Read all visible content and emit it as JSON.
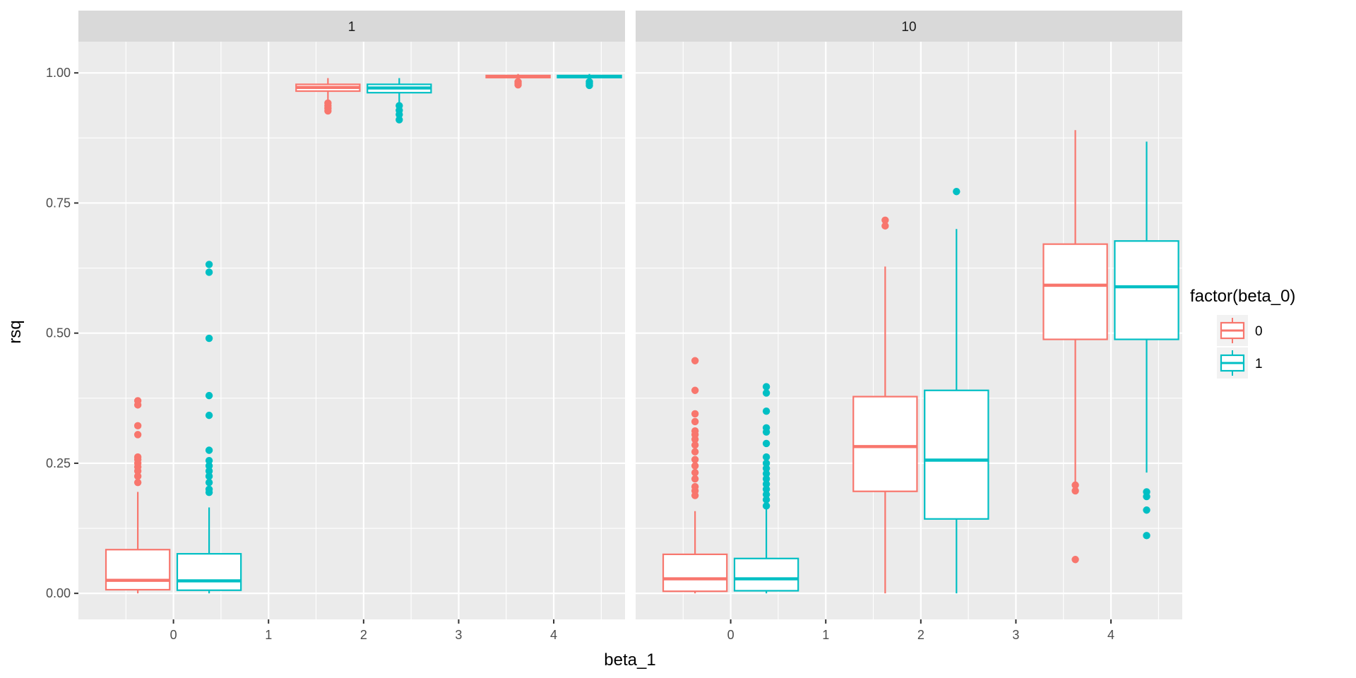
{
  "chart_data": {
    "type": "boxplot",
    "facet_variable": "beta_2",
    "facets": [
      "1",
      "10"
    ],
    "xlabel": "beta_1",
    "ylabel": "rsq",
    "x_ticks": [
      "0",
      "1",
      "2",
      "3",
      "4"
    ],
    "x_range": [
      -1,
      4.75
    ],
    "ylim": [
      -0.05,
      1.06
    ],
    "y_ticks": [
      0.0,
      0.25,
      0.5,
      0.75,
      1.0
    ],
    "y_tick_labels": [
      "0.00",
      "0.25",
      "0.50",
      "0.75",
      "1.00"
    ],
    "legend": {
      "title": "factor(beta_0)",
      "entries": [
        {
          "label": "0",
          "color": "#F8766D"
        },
        {
          "label": "1",
          "color": "#00BFC4"
        }
      ]
    },
    "boxes": [
      {
        "facet": "1",
        "beta_1": 0,
        "group": "0",
        "lower_whisker": 0.0,
        "q1": 0.007,
        "median": 0.025,
        "q3": 0.084,
        "upper_whisker": 0.195,
        "outliers": [
          0.37,
          0.362,
          0.322,
          0.305,
          0.262,
          0.257,
          0.25,
          0.243,
          0.235,
          0.225,
          0.213
        ]
      },
      {
        "facet": "1",
        "beta_1": 0,
        "group": "1",
        "lower_whisker": 0.0,
        "q1": 0.006,
        "median": 0.024,
        "q3": 0.076,
        "upper_whisker": 0.165,
        "outliers": [
          0.632,
          0.617,
          0.49,
          0.38,
          0.342,
          0.275,
          0.255,
          0.245,
          0.235,
          0.225,
          0.213,
          0.2,
          0.194
        ]
      },
      {
        "facet": "1",
        "beta_1": 2,
        "group": "0",
        "lower_whisker": 0.945,
        "q1": 0.965,
        "median": 0.972,
        "q3": 0.978,
        "upper_whisker": 0.99,
        "outliers": [
          0.942,
          0.937,
          0.932,
          0.927
        ]
      },
      {
        "facet": "1",
        "beta_1": 2,
        "group": "1",
        "lower_whisker": 0.942,
        "q1": 0.962,
        "median": 0.971,
        "q3": 0.978,
        "upper_whisker": 0.99,
        "outliers": [
          0.937,
          0.928,
          0.92,
          0.91
        ]
      },
      {
        "facet": "1",
        "beta_1": 4,
        "group": "0",
        "lower_whisker": 0.986,
        "q1": 0.991,
        "median": 0.993,
        "q3": 0.995,
        "upper_whisker": 0.998,
        "outliers": [
          0.983,
          0.98,
          0.977
        ]
      },
      {
        "facet": "1",
        "beta_1": 4,
        "group": "1",
        "lower_whisker": 0.986,
        "q1": 0.991,
        "median": 0.993,
        "q3": 0.995,
        "upper_whisker": 0.998,
        "outliers": [
          0.983,
          0.98,
          0.976
        ]
      },
      {
        "facet": "10",
        "beta_1": 0,
        "group": "0",
        "lower_whisker": 0.0,
        "q1": 0.004,
        "median": 0.028,
        "q3": 0.075,
        "upper_whisker": 0.158,
        "outliers": [
          0.447,
          0.39,
          0.345,
          0.33,
          0.312,
          0.305,
          0.296,
          0.285,
          0.272,
          0.257,
          0.245,
          0.232,
          0.22,
          0.205,
          0.197,
          0.188
        ]
      },
      {
        "facet": "10",
        "beta_1": 0,
        "group": "1",
        "lower_whisker": 0.0,
        "q1": 0.005,
        "median": 0.028,
        "q3": 0.067,
        "upper_whisker": 0.162,
        "outliers": [
          0.397,
          0.385,
          0.35,
          0.318,
          0.31,
          0.288,
          0.262,
          0.25,
          0.24,
          0.23,
          0.22,
          0.21,
          0.2,
          0.19,
          0.18,
          0.168
        ]
      },
      {
        "facet": "10",
        "beta_1": 2,
        "group": "0",
        "lower_whisker": 0.0,
        "q1": 0.196,
        "median": 0.282,
        "q3": 0.378,
        "upper_whisker": 0.628,
        "outliers": [
          0.717,
          0.706
        ]
      },
      {
        "facet": "10",
        "beta_1": 2,
        "group": "1",
        "lower_whisker": 0.0,
        "q1": 0.143,
        "median": 0.256,
        "q3": 0.39,
        "upper_whisker": 0.7,
        "outliers": [
          0.772
        ]
      },
      {
        "facet": "10",
        "beta_1": 4,
        "group": "0",
        "lower_whisker": 0.21,
        "q1": 0.488,
        "median": 0.592,
        "q3": 0.671,
        "upper_whisker": 0.89,
        "outliers": [
          0.208,
          0.197,
          0.065
        ]
      },
      {
        "facet": "10",
        "beta_1": 4,
        "group": "1",
        "lower_whisker": 0.232,
        "q1": 0.488,
        "median": 0.589,
        "q3": 0.677,
        "upper_whisker": 0.868,
        "outliers": [
          0.195,
          0.186,
          0.16,
          0.111
        ]
      }
    ]
  }
}
